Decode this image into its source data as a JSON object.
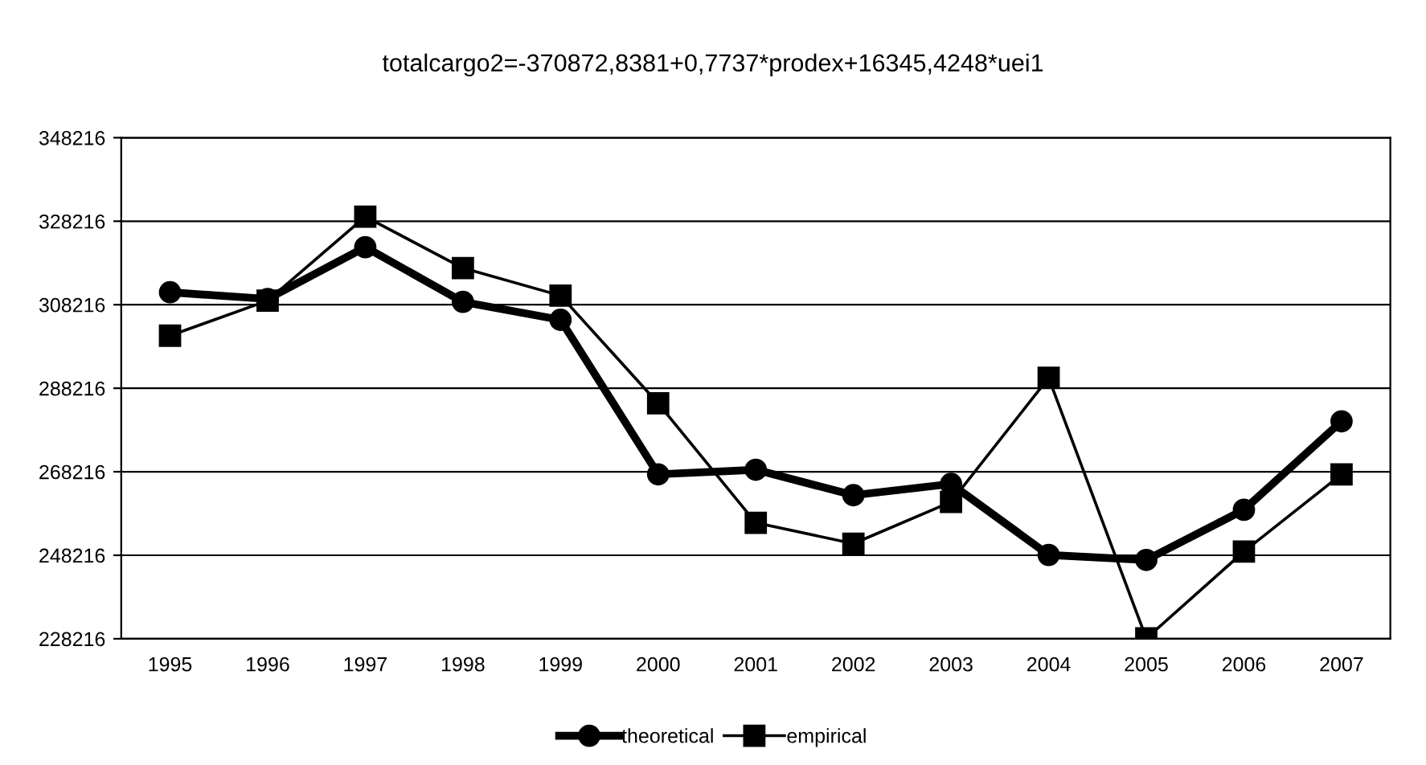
{
  "chart_data": {
    "type": "line",
    "title": "totalcargo2=-370872,8381+0,7737*prodex+16345,4248*uei1",
    "categories": [
      "1995",
      "1996",
      "1997",
      "1998",
      "1999",
      "2000",
      "2001",
      "2002",
      "2003",
      "2004",
      "2005",
      "2006",
      "2007"
    ],
    "series": [
      {
        "name": "theoretical",
        "color": "#000000",
        "marker": "circle",
        "values": [
          311200,
          309600,
          322000,
          308900,
          304600,
          267600,
          268700,
          262600,
          265300,
          248300,
          247100,
          259100,
          280300
        ]
      },
      {
        "name": "empirical",
        "color": "#000000",
        "marker": "square",
        "values": [
          300800,
          309200,
          329300,
          317000,
          310400,
          284600,
          256000,
          251000,
          261000,
          290700,
          228300,
          249100,
          267600
        ]
      }
    ],
    "ylim": [
      228216,
      348216
    ],
    "yticks": [
      228216,
      248216,
      268216,
      288216,
      308216,
      328216,
      348216
    ],
    "grid": "y",
    "legend": "bottom",
    "line_style": "solid"
  }
}
